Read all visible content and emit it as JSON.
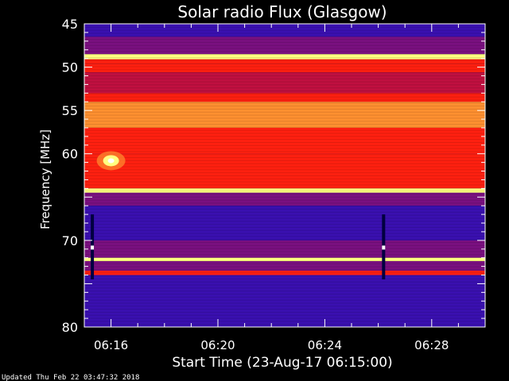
{
  "chart_data": {
    "type": "heatmap",
    "title": "Solar radio Flux (Glasgow)",
    "xlabel": "Start Time (23-Aug-17 06:15:00)",
    "ylabel": "Frequency [MHz]",
    "x_ticks": [
      "06:16",
      "06:20",
      "06:24",
      "06:28"
    ],
    "x_tick_minutes": [
      1,
      5,
      9,
      13
    ],
    "x_range_minutes": [
      0,
      15
    ],
    "y_ticks": [
      45,
      50,
      55,
      60,
      65,
      70,
      75,
      80
    ],
    "y_tick_labels": [
      "45",
      "50",
      "55",
      "60",
      "",
      "70",
      "",
      "80"
    ],
    "ylim": [
      45,
      80
    ],
    "colorscale": [
      "#1a0060",
      "#3a10b0",
      "#7a1080",
      "#c01040",
      "#ff2010",
      "#ff9030",
      "#ffff80",
      "#ffffff"
    ],
    "bands": [
      {
        "from": 45,
        "to": 46.5,
        "level": 0.12
      },
      {
        "from": 46.5,
        "to": 48.5,
        "level": 0.22
      },
      {
        "from": 48.5,
        "to": 49.1,
        "level": 0.92
      },
      {
        "from": 49.1,
        "to": 49.6,
        "level": 0.55
      },
      {
        "from": 49.6,
        "to": 50.6,
        "level": 0.5
      },
      {
        "from": 50.6,
        "to": 53.0,
        "level": 0.45
      },
      {
        "from": 53.0,
        "to": 54.0,
        "level": 0.58
      },
      {
        "from": 54.0,
        "to": 57.0,
        "level": 0.68
      },
      {
        "from": 57.0,
        "to": 60.0,
        "level": 0.55
      },
      {
        "from": 60.0,
        "to": 62.5,
        "level": 0.62
      },
      {
        "from": 62.5,
        "to": 64.0,
        "level": 0.5
      },
      {
        "from": 64.0,
        "to": 64.5,
        "level": 0.85
      },
      {
        "from": 64.5,
        "to": 66.0,
        "level": 0.25
      },
      {
        "from": 66.0,
        "to": 70.0,
        "level": 0.2
      },
      {
        "from": 70.0,
        "to": 72.0,
        "level": 0.22
      },
      {
        "from": 72.0,
        "to": 72.4,
        "level": 0.9
      },
      {
        "from": 72.4,
        "to": 73.5,
        "level": 0.28
      },
      {
        "from": 73.5,
        "to": 74.0,
        "level": 0.55
      },
      {
        "from": 74.0,
        "to": 80.0,
        "level": 0.2
      }
    ],
    "bursts": [
      {
        "minute": 1.0,
        "freq": 60.8,
        "intensity": 1.0
      }
    ],
    "vertical_lines": [
      {
        "minute": 0.3,
        "from": 67,
        "to": 74.5
      },
      {
        "minute": 11.2,
        "from": 67,
        "to": 74.5
      }
    ]
  },
  "footer": {
    "updated": "Updated Thu Feb 22 03:47:32 2018"
  }
}
